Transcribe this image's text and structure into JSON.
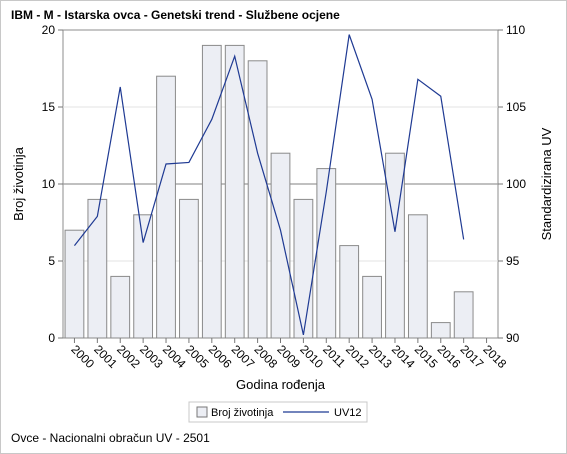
{
  "chart_data": {
    "type": "bar",
    "title": "IBM - M - Istarska ovca - Genetski trend - Službene ocjene",
    "xlabel": "Godina rođenja",
    "ylabel": "Broj životinja",
    "y2label": "Standardizirana UV",
    "categories": [
      "2000",
      "2001",
      "2002",
      "2003",
      "2004",
      "2005",
      "2006",
      "2007",
      "2008",
      "2009",
      "2010",
      "2011",
      "2012",
      "2013",
      "2014",
      "2015",
      "2016",
      "2017",
      "2018"
    ],
    "series": [
      {
        "name": "Broj životinja",
        "type": "bar",
        "axis": "left",
        "color": "#eceef4",
        "values": [
          7,
          9,
          4,
          8,
          17,
          9,
          19,
          19,
          18,
          12,
          9,
          11,
          6,
          4,
          12,
          8,
          1,
          3,
          null
        ]
      },
      {
        "name": "UV12",
        "type": "line",
        "axis": "right",
        "color": "#1f3a93",
        "values": [
          96.0,
          97.9,
          106.3,
          96.2,
          101.3,
          101.4,
          104.2,
          108.3,
          102.0,
          97.0,
          90.2,
          99.5,
          109.7,
          105.5,
          96.9,
          106.8,
          105.7,
          96.4,
          null
        ]
      }
    ],
    "ylim": [
      0,
      20
    ],
    "yticks": [
      "0",
      "5",
      "10",
      "15",
      "20"
    ],
    "y2lim": [
      90,
      110
    ],
    "y2ticks": [
      "90",
      "95",
      "100",
      "105",
      "110"
    ],
    "reference_line": 10,
    "legend_position": "bottom",
    "footnote": "Ovce - Nacionalni obračun UV - 2501"
  }
}
